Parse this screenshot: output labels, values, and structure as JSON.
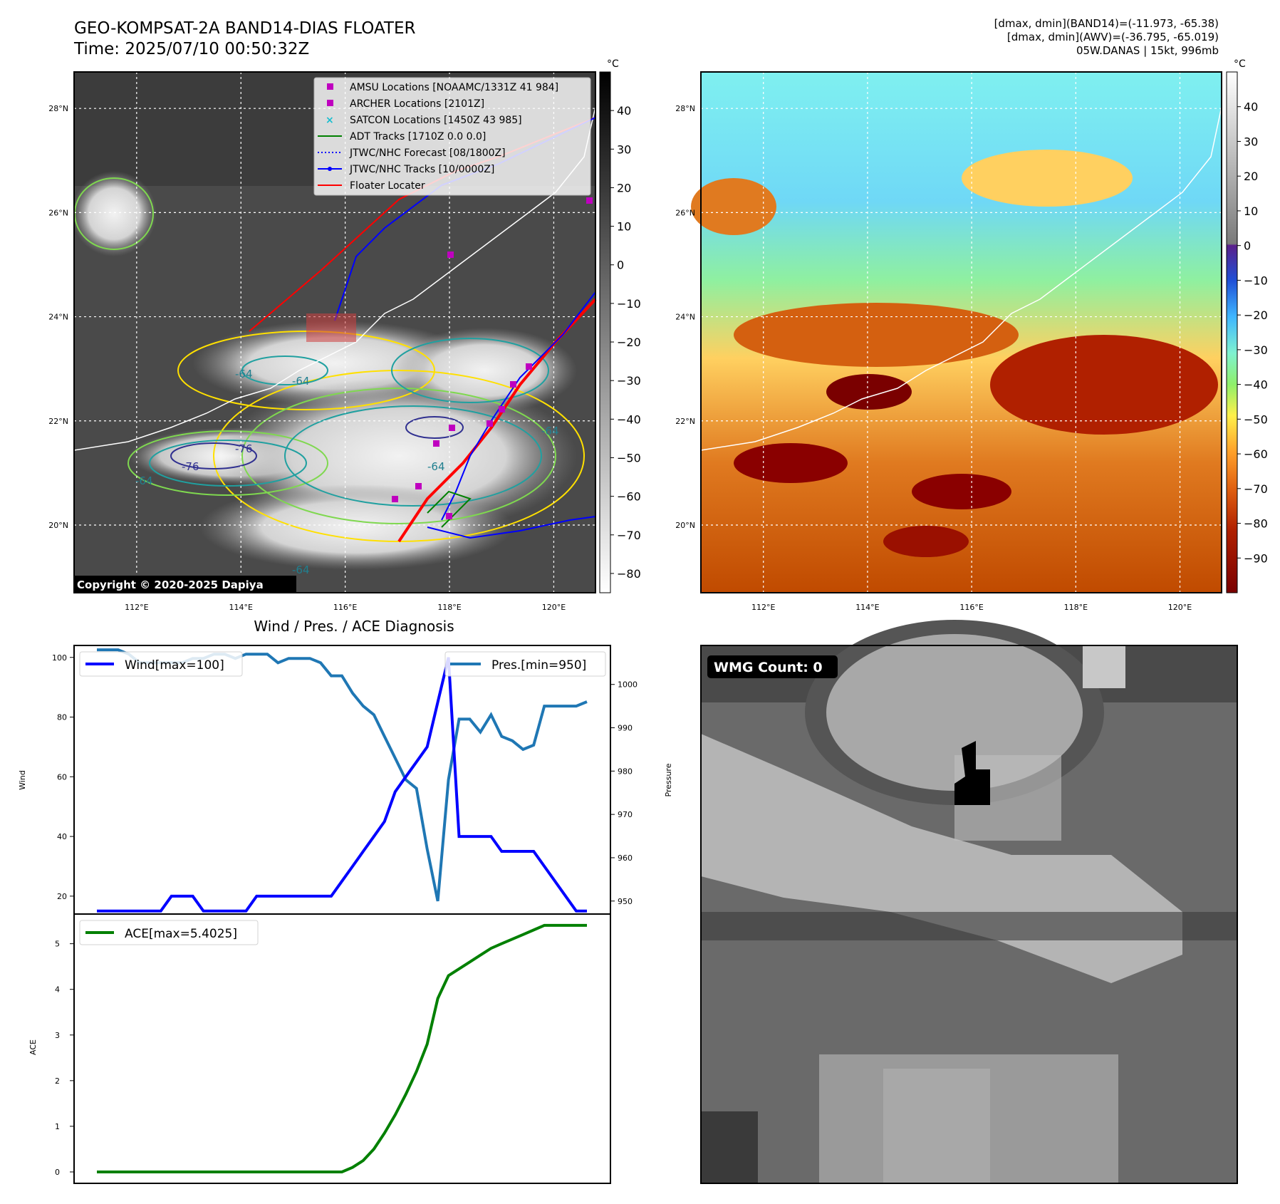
{
  "header": {
    "title_line1": "GEO-KOMPSAT-2A BAND14-DIAS FLOATER",
    "title_line2": "Time: 2025/07/10 00:50:32Z",
    "stats_line1": "[dmax, dmin](BAND14)=(-11.973, -65.38)",
    "stats_line2": "[dmax, dmin](AWV)=(-36.795, -65.019)",
    "stats_line3": "05W.DANAS | 15kt, 996mb"
  },
  "map": {
    "lat_labels": [
      "28°N",
      "26°N",
      "24°N",
      "22°N",
      "20°N"
    ],
    "lat_values": [
      28,
      26,
      24,
      22,
      20
    ],
    "lon_labels": [
      "112°E",
      "114°E",
      "116°E",
      "118°E",
      "120°E"
    ],
    "lon_values": [
      112,
      114,
      116,
      118,
      120
    ],
    "lon_range": [
      110.8,
      120.8
    ],
    "lat_range": [
      18.7,
      28.7
    ],
    "copyright": "Copyright © 2020-2025 Dapiya",
    "contour_labels": [
      "-64",
      "-64",
      "-76",
      "-76",
      "-64",
      "-64",
      "-64",
      "-64"
    ]
  },
  "legend": {
    "items": [
      {
        "label": "AMSU Locations [NOAAMC/1331Z 41 984]",
        "color": "#bf00bf",
        "kind": "square"
      },
      {
        "label": "ARCHER Locations [2101Z]",
        "color": "#bf00bf",
        "kind": "square"
      },
      {
        "label": "SATCON Locations [1450Z 43 985]",
        "color": "#17becf",
        "kind": "x"
      },
      {
        "label": "ADT Tracks [1710Z 0.0 0.0]",
        "color": "#008000",
        "kind": "line"
      },
      {
        "label": "JTWC/NHC Forecast [08/1800Z]",
        "color": "#0000ff",
        "kind": "dotted"
      },
      {
        "label": "JTWC/NHC Tracks [10/0000Z]",
        "color": "#0000ff",
        "kind": "dotline"
      },
      {
        "label": "Floater Locater",
        "color": "#ff0000",
        "kind": "line"
      }
    ]
  },
  "colorbar_gray": {
    "unit": "°C",
    "ticks": [
      "40",
      "30",
      "20",
      "10",
      "0",
      "−10",
      "−20",
      "−30",
      "−40",
      "−50",
      "−60",
      "−70",
      "−80"
    ],
    "tick_values": [
      40,
      30,
      20,
      10,
      0,
      -10,
      -20,
      -30,
      -40,
      -50,
      -60,
      -70,
      -80
    ],
    "range": [
      -85,
      50
    ]
  },
  "colorbar_color": {
    "unit": "°C",
    "ticks": [
      "40",
      "30",
      "20",
      "10",
      "0",
      "−10",
      "−20",
      "−30",
      "−40",
      "−50",
      "−60",
      "−70",
      "−80",
      "−90"
    ],
    "tick_values": [
      40,
      30,
      20,
      10,
      0,
      -10,
      -20,
      -30,
      -40,
      -50,
      -60,
      -70,
      -80,
      -90
    ],
    "range": [
      -100,
      50
    ]
  },
  "diag": {
    "title": "Wind / Pres. / ACE Diagnosis",
    "wind_ylabel": "Wind",
    "pres_ylabel": "Pressure",
    "ace_ylabel": "ACE",
    "wind_legend": "Wind[max=100]",
    "pres_legend": "Pres.[min=950]",
    "ace_legend": "ACE[max=5.4025]",
    "wind_ticks": [
      "100",
      "80",
      "60",
      "40",
      "20"
    ],
    "wind_tick_values": [
      100,
      80,
      60,
      40,
      20
    ],
    "pres_ticks": [
      "1000",
      "990",
      "980",
      "970",
      "960",
      "950"
    ],
    "pres_tick_values": [
      1000,
      990,
      980,
      970,
      960,
      950
    ],
    "ace_ticks": [
      "5",
      "4",
      "3",
      "2",
      "1",
      "0"
    ],
    "ace_tick_values": [
      5,
      4,
      3,
      2,
      1,
      0
    ]
  },
  "chart_data": [
    {
      "type": "line",
      "title": "Wind / Pres. / ACE Diagnosis",
      "xlabel": "",
      "ylabel": "Wind",
      "y2label": "Pressure",
      "ylim": [
        14,
        104
      ],
      "y2lim": [
        947,
        1009
      ],
      "x": [
        0,
        1,
        2,
        3,
        4,
        5,
        6,
        7,
        8,
        9,
        10,
        11,
        12,
        13,
        14,
        15,
        16,
        17,
        18,
        19,
        20,
        21,
        22,
        23,
        24,
        25,
        26,
        27,
        28,
        29,
        30,
        31,
        32,
        33,
        34,
        35,
        36,
        37,
        38,
        39,
        40,
        41,
        42,
        43,
        44,
        45,
        46
      ],
      "series": [
        {
          "name": "Wind[max=100]",
          "color": "#0000ff",
          "values": [
            15,
            15,
            15,
            15,
            15,
            15,
            15,
            20,
            20,
            20,
            15,
            15,
            15,
            15,
            15,
            20,
            20,
            20,
            20,
            20,
            20,
            20,
            20,
            25,
            30,
            35,
            40,
            45,
            55,
            60,
            65,
            70,
            85,
            100,
            40,
            40,
            40,
            40,
            35,
            35,
            35,
            35,
            30,
            25,
            20,
            15,
            15
          ]
        },
        {
          "name": "Pres.[min=950]",
          "color": "#1f77b4",
          "values": [
            1008,
            1008,
            1008,
            1007,
            1005,
            1005,
            1005,
            1005,
            1005,
            1006,
            1006,
            1007,
            1007,
            1006,
            1007,
            1007,
            1007,
            1005,
            1006,
            1006,
            1006,
            1005,
            1002,
            1002,
            998,
            995,
            993,
            988,
            983,
            978,
            976,
            962,
            950,
            978,
            992,
            992,
            989,
            993,
            988,
            987,
            985,
            986,
            995,
            995,
            995,
            995,
            996
          ]
        }
      ]
    },
    {
      "type": "line",
      "xlabel": "",
      "ylabel": "ACE",
      "ylim": [
        -0.25,
        5.65
      ],
      "x": [
        0,
        1,
        2,
        3,
        4,
        5,
        6,
        7,
        8,
        9,
        10,
        11,
        12,
        13,
        14,
        15,
        16,
        17,
        18,
        19,
        20,
        21,
        22,
        23,
        24,
        25,
        26,
        27,
        28,
        29,
        30,
        31,
        32,
        33,
        34,
        35,
        36,
        37,
        38,
        39,
        40,
        41,
        42,
        43,
        44,
        45,
        46
      ],
      "series": [
        {
          "name": "ACE[max=5.4025]",
          "color": "#008000",
          "values": [
            0,
            0,
            0,
            0,
            0,
            0,
            0,
            0,
            0,
            0,
            0,
            0,
            0,
            0,
            0,
            0,
            0,
            0,
            0,
            0,
            0,
            0,
            0,
            0,
            0.1,
            0.25,
            0.5,
            0.85,
            1.25,
            1.7,
            2.2,
            2.8,
            3.8,
            4.3,
            4.45,
            4.6,
            4.75,
            4.9,
            5.0,
            5.1,
            5.2,
            5.3,
            5.4025,
            5.4025,
            5.4025,
            5.4025,
            5.4025
          ]
        }
      ]
    }
  ],
  "wmg": {
    "count_label": "WMG Count: 0"
  }
}
